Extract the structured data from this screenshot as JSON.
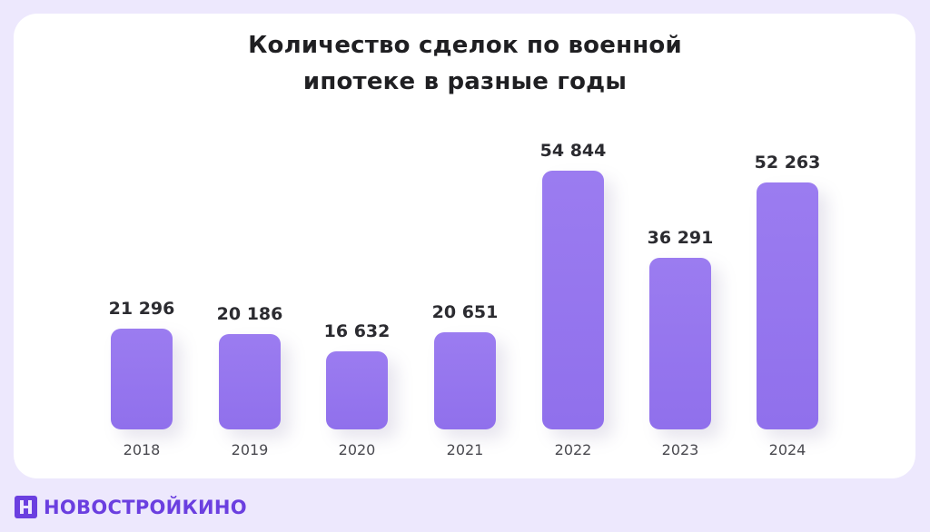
{
  "title": {
    "line1": "Количество сделок по военной",
    "line2": "ипотеке в разные годы"
  },
  "bars": [
    {
      "year": "2018",
      "label": "21 296"
    },
    {
      "year": "2019",
      "label": "20 186"
    },
    {
      "year": "2020",
      "label": "16 632"
    },
    {
      "year": "2021",
      "label": "20 651"
    },
    {
      "year": "2022",
      "label": "54 844"
    },
    {
      "year": "2023",
      "label": "36 291"
    },
    {
      "year": "2024",
      "label": "52 263"
    }
  ],
  "brand": {
    "name": "НОВОСТРОЙКИНО",
    "logo_icon": "h-square-logo-icon"
  },
  "colors": {
    "bar": "#9475ee",
    "background": "#ede8fd",
    "brand": "#6b3fe0"
  },
  "chart_data": {
    "type": "bar",
    "title": "Количество сделок по военной ипотеке в разные годы",
    "categories": [
      "2018",
      "2019",
      "2020",
      "2021",
      "2022",
      "2023",
      "2024"
    ],
    "values": [
      21296,
      20186,
      16632,
      20651,
      54844,
      36291,
      52263
    ],
    "xlabel": "",
    "ylabel": "",
    "ylim": [
      0,
      55000
    ],
    "grid": false,
    "legend": null,
    "data_labels": true
  }
}
